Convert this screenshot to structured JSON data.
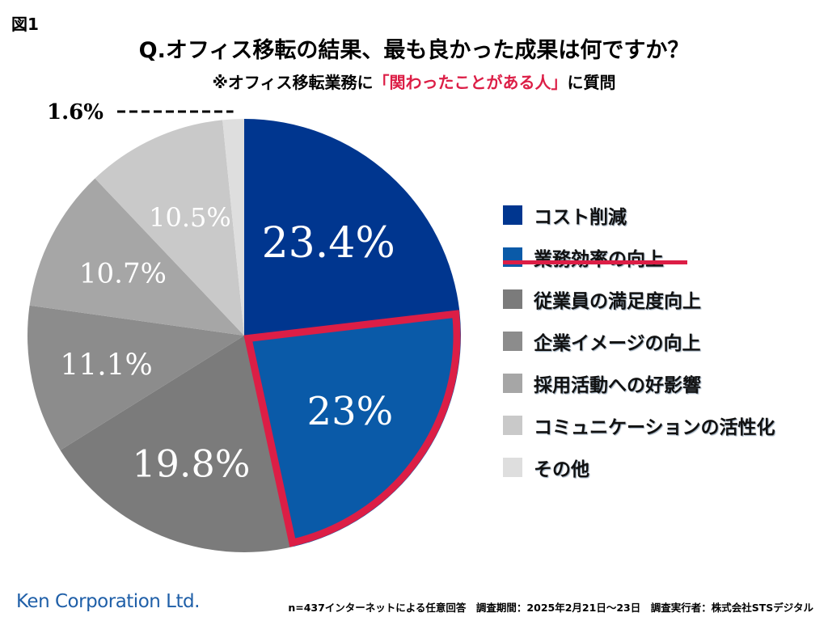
{
  "figure_label": "図1",
  "title": "Q.オフィス移転の結果、最も良かった成果は何ですか？",
  "subtitle_prefix": "※オフィス移転業務に",
  "subtitle_highlight": "「関わったことがある人」",
  "subtitle_suffix": "に質問",
  "logo": "Ken Corporation Ltd.",
  "footer": "n=437インターネットによる任意回答　調査期間：2025年2月21日〜23日　調査実行者：株式会社STSデジタル",
  "highlight_color": "#dc1e46",
  "chart_data": {
    "type": "pie",
    "title": "Q.オフィス移転の結果、最も良かった成果は何ですか？",
    "start": "top",
    "direction": "clockwise",
    "highlighted": "業務効率の向上",
    "legend_position": "right",
    "slices": [
      {
        "label": "コスト削減",
        "value": 23.4,
        "display": "23.4%",
        "color": "#00368f"
      },
      {
        "label": "業務効率の向上",
        "value": 23,
        "display": "23%",
        "color": "#0a5aa8"
      },
      {
        "label": "従業員の満足度向上",
        "value": 19.8,
        "display": "19.8%",
        "color": "#7b7b7b"
      },
      {
        "label": "企業イメージの向上",
        "value": 11.1,
        "display": "11.1%",
        "color": "#8c8c8c"
      },
      {
        "label": "採用活動への好影響",
        "value": 10.7,
        "display": "10.7%",
        "color": "#a6a6a6"
      },
      {
        "label": "コミュニケーションの活性化",
        "value": 10.5,
        "display": "10.5%",
        "color": "#c9c9c9"
      },
      {
        "label": "その他",
        "value": 1.6,
        "display": "1.6%",
        "color": "#dedede"
      }
    ]
  }
}
